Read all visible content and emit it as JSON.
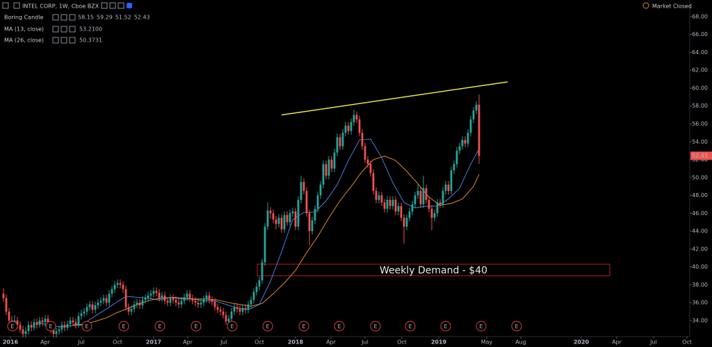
{
  "chart_data": {
    "type": "candlestick",
    "title": "INTEL CORP, 1W, Cboe BZX",
    "status": "Market Closed",
    "candle_name": "Boring Candle",
    "up_color": "#26a69a",
    "down_color": "#ef5350",
    "grid": false,
    "xlim": [
      -1.25,
      246.25
    ],
    "ylim": [
      32.2,
      69.86
    ],
    "yticks": [
      {
        "value": 34,
        "label": "34.00"
      },
      {
        "value": 36,
        "label": "36.00"
      },
      {
        "value": 38,
        "label": "38.00"
      },
      {
        "value": 40,
        "label": "40.00"
      },
      {
        "value": 42,
        "label": "42.00"
      },
      {
        "value": 44,
        "label": "44.00"
      },
      {
        "value": 46,
        "label": "46.00"
      },
      {
        "value": 48,
        "label": "48.00"
      },
      {
        "value": 50,
        "label": "50.00"
      },
      {
        "value": 52,
        "label": "52.00"
      },
      {
        "value": 54,
        "label": "54.00"
      },
      {
        "value": 56,
        "label": "56.00"
      },
      {
        "value": 58,
        "label": "58.00"
      },
      {
        "value": 60,
        "label": "60.00"
      },
      {
        "value": 62,
        "label": "62.00"
      },
      {
        "value": 64,
        "label": "64.00"
      },
      {
        "value": 66,
        "label": "66.00"
      },
      {
        "value": 68,
        "label": "68.00"
      }
    ],
    "xticks": [
      {
        "value": 2.5,
        "label": "2016"
      },
      {
        "value": 15,
        "label": "Apr"
      },
      {
        "value": 28,
        "label": "Jul"
      },
      {
        "value": 41,
        "label": "Oct"
      },
      {
        "value": 54,
        "label": "2017"
      },
      {
        "value": 66.25,
        "label": "Apr"
      },
      {
        "value": 79.25,
        "label": "Jul"
      },
      {
        "value": 92,
        "label": "Oct"
      },
      {
        "value": 105,
        "label": "2018"
      },
      {
        "value": 117.75,
        "label": "Apr"
      },
      {
        "value": 130,
        "label": "Jul"
      },
      {
        "value": 143.25,
        "label": "Oct"
      },
      {
        "value": 156.5,
        "label": "2019"
      },
      {
        "value": 173.75,
        "label": "May"
      },
      {
        "value": 186,
        "label": "Aug"
      },
      {
        "value": 207.75,
        "label": "2020"
      },
      {
        "value": 220.5,
        "label": "Apr"
      },
      {
        "value": 233.75,
        "label": "Jul"
      },
      {
        "value": 245.75,
        "label": "Oct"
      }
    ],
    "candles": [
      [
        37,
        37.6,
        36.1,
        36.5
      ],
      [
        36.5,
        36.9,
        34.6,
        35
      ],
      [
        35,
        35.4,
        33.6,
        34
      ],
      [
        34,
        34.5,
        33.3,
        33.8
      ],
      [
        33.8,
        34.6,
        33.4,
        34
      ],
      [
        34,
        34.4,
        33.1,
        33.5
      ],
      [
        33.5,
        33.9,
        32.6,
        33
      ],
      [
        33,
        33.4,
        32.1,
        32.5
      ],
      [
        32.5,
        33.2,
        32.1,
        32.8
      ],
      [
        32.8,
        33.9,
        32.4,
        33.5
      ],
      [
        33.5,
        33.9,
        32.8,
        33.2
      ],
      [
        33.2,
        34.2,
        32.9,
        33.8
      ],
      [
        33.8,
        34.2,
        33.1,
        33.5
      ],
      [
        33.5,
        34.4,
        33.2,
        34
      ],
      [
        34,
        34.4,
        33.4,
        33.8
      ],
      [
        33.8,
        34.6,
        33.4,
        34.2
      ],
      [
        34.2,
        34.6,
        33.1,
        33.5
      ],
      [
        33.5,
        33.9,
        32.6,
        33
      ],
      [
        33,
        33.4,
        32.1,
        32.5
      ],
      [
        32.5,
        33.2,
        32.1,
        32.8
      ],
      [
        32.8,
        33.4,
        32.4,
        33
      ],
      [
        33,
        33.9,
        32.6,
        33.5
      ],
      [
        33.5,
        33.9,
        32.8,
        33.2
      ],
      [
        33.2,
        34,
        32.9,
        33.6
      ],
      [
        33.6,
        34.4,
        33.2,
        34
      ],
      [
        34,
        34.4,
        33.4,
        33.8
      ],
      [
        33.8,
        34.2,
        33.1,
        33.5
      ],
      [
        33.5,
        34.9,
        33.2,
        34.5
      ],
      [
        34.5,
        35.2,
        34.1,
        34.8
      ],
      [
        34.8,
        35.4,
        34.4,
        35
      ],
      [
        35,
        35.9,
        34.6,
        35.5
      ],
      [
        35.5,
        36.2,
        35.1,
        35.8
      ],
      [
        35.8,
        36.2,
        34.8,
        35.2
      ],
      [
        35.2,
        36.1,
        34.8,
        35.7
      ],
      [
        35.7,
        36.4,
        35.3,
        36
      ],
      [
        36,
        36.6,
        35.6,
        36.2
      ],
      [
        36.2,
        36.9,
        35.8,
        36.5
      ],
      [
        36.5,
        36.9,
        35.6,
        36
      ],
      [
        36,
        37.4,
        35.6,
        37
      ],
      [
        37,
        37.9,
        36.6,
        37.5
      ],
      [
        37.5,
        38.4,
        37.1,
        38
      ],
      [
        38,
        38.6,
        37.6,
        38.2
      ],
      [
        38.2,
        38.6,
        37.6,
        38
      ],
      [
        38,
        38.4,
        37.1,
        37.5
      ],
      [
        37.5,
        37.9,
        35.1,
        35.5
      ],
      [
        35.5,
        35.9,
        34.6,
        35
      ],
      [
        35,
        35.7,
        34.6,
        35.3
      ],
      [
        35.3,
        36.2,
        34.9,
        35.8
      ],
      [
        35.8,
        36.4,
        35.4,
        36
      ],
      [
        36,
        36.4,
        35.3,
        35.7
      ],
      [
        35.7,
        36.7,
        35.3,
        36.3
      ],
      [
        36.3,
        36.9,
        35.9,
        36.5
      ],
      [
        36.5,
        37.2,
        36.1,
        36.8
      ],
      [
        36.8,
        37.4,
        36.4,
        37
      ],
      [
        37,
        37.7,
        36.6,
        37.3
      ],
      [
        37.3,
        37.7,
        36.7,
        37.1
      ],
      [
        37.1,
        37.5,
        36.1,
        36.5
      ],
      [
        36.5,
        37.2,
        36.1,
        36.8
      ],
      [
        36.8,
        37.2,
        35.8,
        36.2
      ],
      [
        36.2,
        36.6,
        35.6,
        36
      ],
      [
        36,
        36.9,
        35.6,
        36.5
      ],
      [
        36.5,
        36.9,
        35.9,
        36.3
      ],
      [
        36.3,
        36.7,
        35.6,
        36
      ],
      [
        36,
        36.4,
        35.4,
        35.8
      ],
      [
        35.8,
        36.6,
        35.4,
        36.2
      ],
      [
        36.2,
        37,
        35.8,
        36.6
      ],
      [
        36.6,
        37.4,
        36.2,
        37
      ],
      [
        37,
        37.4,
        36.1,
        36.5
      ],
      [
        36.5,
        36.9,
        35.8,
        36.2
      ],
      [
        36.2,
        36.6,
        35.6,
        36
      ],
      [
        36,
        36.4,
        35.4,
        35.8
      ],
      [
        35.8,
        36.4,
        35.4,
        36
      ],
      [
        36,
        36.8,
        35.6,
        36.4
      ],
      [
        36.4,
        37.2,
        36,
        36.8
      ],
      [
        36.8,
        37.2,
        35.9,
        36.3
      ],
      [
        36.3,
        36.7,
        35.7,
        36.1
      ],
      [
        36.1,
        36.5,
        35.1,
        35.5
      ],
      [
        35.5,
        35.9,
        34.8,
        35.2
      ],
      [
        35.2,
        35.6,
        34.6,
        35
      ],
      [
        35,
        35.4,
        34.2,
        34.6
      ],
      [
        34.6,
        35,
        33.5,
        33.9
      ],
      [
        33.9,
        34.6,
        33.5,
        34.2
      ],
      [
        34.2,
        35.4,
        33.8,
        35
      ],
      [
        35,
        35.9,
        34.6,
        35.5
      ],
      [
        35.5,
        35.9,
        34.9,
        35.3
      ],
      [
        35.3,
        35.7,
        34.6,
        35
      ],
      [
        35,
        35.8,
        34.6,
        35.4
      ],
      [
        35.4,
        35.8,
        34.8,
        35.2
      ],
      [
        35.2,
        36.2,
        34.8,
        35.8
      ],
      [
        35.8,
        36.7,
        35.4,
        36.3
      ],
      [
        36.3,
        37.6,
        35.9,
        37.2
      ],
      [
        37.2,
        38.2,
        36.8,
        37.8
      ],
      [
        37.8,
        38.9,
        37.4,
        38.5
      ],
      [
        38.5,
        40.9,
        38.1,
        40.5
      ],
      [
        40.5,
        44.9,
        40.1,
        44.5
      ],
      [
        44.5,
        47.2,
        44.1,
        46.3
      ],
      [
        46.3,
        46.7,
        45.4,
        46
      ],
      [
        46,
        46.4,
        44.9,
        45.3
      ],
      [
        45.3,
        45.7,
        44.2,
        44.8
      ],
      [
        44.8,
        45.9,
        44.4,
        45.5
      ],
      [
        45.5,
        45.9,
        43.8,
        44.2
      ],
      [
        44.2,
        46.2,
        43.8,
        45.8
      ],
      [
        45.8,
        46.2,
        44.6,
        45
      ],
      [
        45,
        46.4,
        44.6,
        46
      ],
      [
        46,
        46.6,
        45.6,
        46.2
      ],
      [
        46.2,
        46.6,
        44.1,
        44.5
      ],
      [
        44.5,
        47.9,
        44.1,
        47.5
      ],
      [
        47.5,
        50.2,
        47.1,
        49.5
      ],
      [
        49.5,
        49.9,
        48.1,
        48.5
      ],
      [
        48.5,
        48.9,
        45.6,
        46
      ],
      [
        46,
        46.4,
        42.4,
        44
      ],
      [
        44,
        45.6,
        43.6,
        45.2
      ],
      [
        45.2,
        46.9,
        44.8,
        46.5
      ],
      [
        46.5,
        48.4,
        46.1,
        48
      ],
      [
        48,
        49.6,
        47.6,
        49.2
      ],
      [
        49.2,
        51.9,
        48.8,
        51.5
      ],
      [
        51.5,
        51.9,
        49.8,
        50.2
      ],
      [
        50.2,
        52.4,
        49.8,
        52
      ],
      [
        52,
        52.4,
        50.6,
        51
      ],
      [
        51,
        53.2,
        50.6,
        52.8
      ],
      [
        52.8,
        54.9,
        52.4,
        54.5
      ],
      [
        54.5,
        54.9,
        53.1,
        53.5
      ],
      [
        53.5,
        55.4,
        53.1,
        55
      ],
      [
        55,
        56.2,
        54.6,
        55.8
      ],
      [
        55.8,
        56.2,
        54.8,
        55.2
      ],
      [
        55.2,
        56.6,
        54.8,
        56.2
      ],
      [
        56.2,
        57.6,
        55.8,
        57
      ],
      [
        57,
        57.4,
        56.1,
        56.5
      ],
      [
        56.5,
        56.9,
        54.6,
        55
      ],
      [
        55,
        55.4,
        53.1,
        53.5
      ],
      [
        53.5,
        53.9,
        51.6,
        52
      ],
      [
        52,
        52.4,
        51.1,
        51.5
      ],
      [
        51.5,
        51.9,
        50.1,
        50.5
      ],
      [
        50.5,
        50.9,
        48.1,
        48.5
      ],
      [
        48.5,
        48.9,
        47.1,
        47.5
      ],
      [
        47.5,
        48.4,
        47.1,
        48
      ],
      [
        48,
        48.4,
        46.8,
        47.2
      ],
      [
        47.2,
        47.6,
        46.1,
        46.5
      ],
      [
        46.5,
        47.9,
        46.1,
        47.5
      ],
      [
        47.5,
        47.9,
        46.4,
        46.8
      ],
      [
        46.8,
        47.9,
        46.4,
        47.5
      ],
      [
        47.5,
        47.9,
        45.8,
        46.2
      ],
      [
        46.2,
        47.2,
        45.8,
        46.8
      ],
      [
        46.8,
        47.2,
        45.1,
        45.5
      ],
      [
        45.5,
        45.9,
        42.6,
        44.5
      ],
      [
        44.5,
        45.9,
        44.1,
        45.5
      ],
      [
        45.5,
        46.6,
        45.1,
        46.2
      ],
      [
        46.2,
        47.4,
        45.8,
        47
      ],
      [
        47,
        48.4,
        46.6,
        48
      ],
      [
        48,
        49.2,
        47.6,
        48.5
      ],
      [
        48.5,
        48.9,
        46.6,
        47
      ],
      [
        47,
        50.2,
        46.6,
        48.8
      ],
      [
        48.8,
        49.2,
        47.1,
        47.5
      ],
      [
        47.5,
        47.9,
        46.1,
        46.5
      ],
      [
        46.5,
        46.9,
        44.1,
        45.5
      ],
      [
        45.5,
        46.4,
        45.1,
        46
      ],
      [
        46,
        47.6,
        45.6,
        47.2
      ],
      [
        47.2,
        47.6,
        46.6,
        47
      ],
      [
        47,
        48.9,
        46.6,
        48.5
      ],
      [
        48.5,
        49.6,
        48.1,
        49.2
      ],
      [
        49.2,
        49.6,
        48.1,
        48.5
      ],
      [
        48.5,
        51.2,
        48.1,
        50.8
      ],
      [
        50.8,
        51.9,
        50.4,
        51.5
      ],
      [
        51.5,
        53.4,
        51.1,
        53
      ],
      [
        53,
        53.9,
        52.6,
        53.5
      ],
      [
        53.5,
        54.6,
        53.1,
        54.2
      ],
      [
        54.2,
        54.6,
        53.4,
        53.8
      ],
      [
        53.8,
        55.4,
        53.4,
        55
      ],
      [
        55,
        56.9,
        54.6,
        56.5
      ],
      [
        56.5,
        57.9,
        56.1,
        57.5
      ],
      [
        57.5,
        58.5,
        57.1,
        58.15
      ],
      [
        58.15,
        59.29,
        51.52,
        52.43
      ]
    ],
    "series": [
      {
        "name": "MA (13, close)",
        "color": "#4a7fe0",
        "value_label": "53.2100",
        "x": [
          12,
          16,
          20,
          24,
          28,
          32,
          36,
          40,
          44,
          48,
          52,
          56,
          60,
          64,
          68,
          72,
          76,
          80,
          84,
          88,
          92,
          96,
          100,
          104,
          108,
          112,
          116,
          120,
          124,
          128,
          132,
          136,
          140,
          144,
          148,
          152,
          156,
          160,
          164,
          168,
          171
        ],
        "values": [
          33.8,
          33.5,
          33.3,
          33.4,
          33.5,
          34.3,
          35.1,
          35.9,
          36.7,
          36.6,
          36.5,
          36.3,
          36.6,
          36.4,
          36.4,
          36.2,
          36.2,
          35.8,
          35.4,
          35.2,
          35.8,
          38.4,
          41.7,
          45.3,
          46.1,
          46.1,
          47.4,
          49.2,
          51.9,
          54.2,
          54.3,
          52.2,
          49.4,
          47.2,
          46.6,
          46.8,
          46.8,
          47.6,
          48.8,
          51.5,
          53.21
        ]
      },
      {
        "name": "MA (26, close)",
        "color": "#e8892f",
        "value_label": "50.3731",
        "x": [
          25,
          29,
          33,
          37,
          41,
          45,
          49,
          53,
          57,
          61,
          65,
          69,
          73,
          77,
          81,
          85,
          89,
          93,
          97,
          101,
          105,
          109,
          113,
          117,
          121,
          125,
          129,
          133,
          137,
          141,
          145,
          149,
          153,
          157,
          161,
          165,
          169,
          171
        ],
        "values": [
          33.5,
          33.6,
          33.9,
          34.3,
          34.9,
          35.4,
          35.9,
          36.3,
          36.5,
          36.6,
          36.5,
          36.4,
          36.4,
          36.3,
          36.0,
          35.8,
          35.6,
          35.9,
          37.0,
          38.2,
          39.6,
          41.6,
          43.4,
          45.5,
          47.4,
          49.0,
          50.7,
          52.0,
          52.4,
          51.9,
          50.7,
          49.3,
          47.8,
          46.9,
          47.1,
          47.6,
          49.0,
          50.3731
        ]
      }
    ],
    "trendline": {
      "color": "#e8e84a",
      "x": [
        100,
        181.25
      ],
      "y": [
        57,
        60.7
      ]
    },
    "demand_zone": {
      "label": "Weekly Demand - $40",
      "color": "#b81d1d",
      "x": [
        91.25,
        218
      ],
      "top": 40.3,
      "bottom": 39.0
    },
    "earnings": {
      "label": "E",
      "color": "#d9473c",
      "x": [
        3.25,
        17,
        30,
        43.25,
        56.25,
        69.25,
        82.25,
        95,
        108,
        120.75,
        133.75,
        146.25,
        159,
        171.75,
        184.5
      ]
    }
  }
}
